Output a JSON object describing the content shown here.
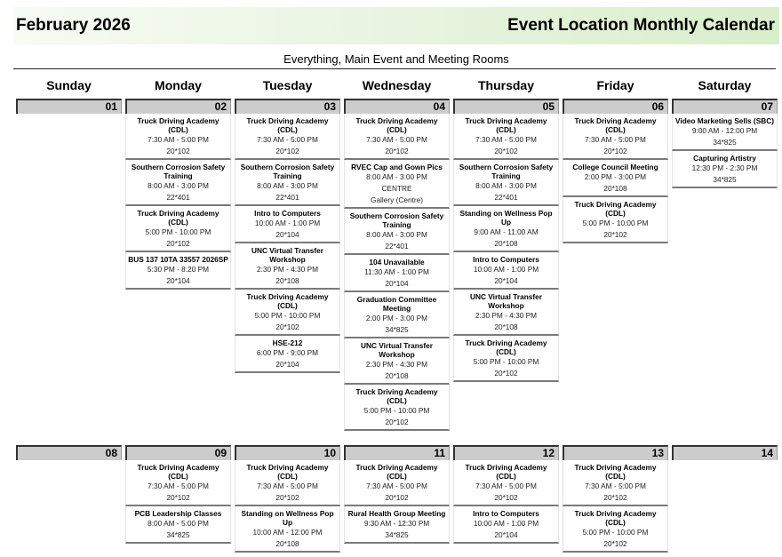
{
  "header": {
    "month": "February 2026",
    "title": "Event Location Monthly Calendar",
    "subtitle": "Everything, Main Event and Meeting Rooms"
  },
  "weekdays": [
    "Sunday",
    "Monday",
    "Tuesday",
    "Wednesday",
    "Thursday",
    "Friday",
    "Saturday"
  ],
  "weeks": [
    [
      {
        "day": "01",
        "events": []
      },
      {
        "day": "02",
        "events": [
          {
            "title": "Truck Driving Academy (CDL)",
            "lines": [
              "7:30 AM - 5:00 PM",
              "20*102"
            ]
          },
          {
            "title": "Southern Corrosion Safety Training",
            "lines": [
              "8:00 AM - 3:00 PM",
              "22*401"
            ]
          },
          {
            "title": "Truck Driving Academy (CDL)",
            "lines": [
              "5:00 PM - 10:00 PM",
              "20*102"
            ]
          },
          {
            "title": "BUS 137 10TA 33557 2026SP",
            "lines": [
              "5:30 PM - 8:20 PM",
              "20*104"
            ]
          }
        ]
      },
      {
        "day": "03",
        "events": [
          {
            "title": "Truck Driving Academy (CDL)",
            "lines": [
              "7:30 AM - 5:00 PM",
              "20*102"
            ]
          },
          {
            "title": "Southern Corrosion Safety Training",
            "lines": [
              "8:00 AM - 3:00 PM",
              "22*401"
            ]
          },
          {
            "title": "Intro to Computers",
            "lines": [
              "10:00 AM - 1:00 PM",
              "20*104"
            ]
          },
          {
            "title": "UNC Virtual Transfer Workshop",
            "lines": [
              "2:30 PM - 4:30 PM",
              "20*108"
            ]
          },
          {
            "title": "Truck Driving Academy (CDL)",
            "lines": [
              "5:00 PM - 10:00 PM",
              "20*102"
            ]
          },
          {
            "title": "HSE-212",
            "lines": [
              "6:00 PM - 9:00 PM",
              "20*104"
            ]
          }
        ]
      },
      {
        "day": "04",
        "events": [
          {
            "title": "Truck Driving Academy (CDL)",
            "lines": [
              "7:30 AM - 5:00 PM",
              "20*102"
            ]
          },
          {
            "title": "RVEC Cap and Gown Pics",
            "lines": [
              "8:00 AM - 3:00 PM",
              "CENTRE",
              "Gallery (Centre)"
            ]
          },
          {
            "title": "Southern Corrosion Safety Training",
            "lines": [
              "8:00 AM - 3:00 PM",
              "22*401"
            ]
          },
          {
            "title": "104 Unavailable",
            "lines": [
              "11:30 AM - 1:00 PM",
              "20*104"
            ]
          },
          {
            "title": "Graduation Committee Meeting",
            "lines": [
              "2:00 PM - 3:00 PM",
              "34*825"
            ]
          },
          {
            "title": "UNC Virtual Transfer Workshop",
            "lines": [
              "2:30 PM - 4:30 PM",
              "20*108"
            ]
          },
          {
            "title": "Truck Driving Academy (CDL)",
            "lines": [
              "5:00 PM - 10:00 PM",
              "20*102"
            ]
          }
        ]
      },
      {
        "day": "05",
        "events": [
          {
            "title": "Truck Driving Academy (CDL)",
            "lines": [
              "7:30 AM - 5:00 PM",
              "20*102"
            ]
          },
          {
            "title": "Southern Corrosion Safety Training",
            "lines": [
              "8:00 AM - 3:00 PM",
              "22*401"
            ]
          },
          {
            "title": "Standing on Wellness Pop Up",
            "lines": [
              "9:00 AM - 11:00 AM",
              "20*108"
            ]
          },
          {
            "title": "Intro to Computers",
            "lines": [
              "10:00 AM - 1:00 PM",
              "20*104"
            ]
          },
          {
            "title": "UNC Virtual Transfer Workshop",
            "lines": [
              "2:30 PM - 4:30 PM",
              "20*108"
            ]
          },
          {
            "title": "Truck Driving Academy (CDL)",
            "lines": [
              "5:00 PM - 10:00 PM",
              "20*102"
            ]
          }
        ]
      },
      {
        "day": "06",
        "events": [
          {
            "title": "Truck Driving Academy (CDL)",
            "lines": [
              "7:30 AM - 5:00 PM",
              "20*102"
            ]
          },
          {
            "title": "College Council Meeting",
            "lines": [
              "2:00 PM - 3:00 PM",
              "20*108"
            ]
          },
          {
            "title": "Truck Driving Academy (CDL)",
            "lines": [
              "5:00 PM - 10:00 PM",
              "20*102"
            ]
          }
        ]
      },
      {
        "day": "07",
        "events": [
          {
            "title": "Video Marketing Sells (SBC)",
            "lines": [
              "9:00 AM - 12:00 PM",
              "34*825"
            ]
          },
          {
            "title": "Capturing Artistry",
            "lines": [
              "12:30 PM - 2:30 PM",
              "34*825"
            ]
          }
        ]
      }
    ],
    [
      {
        "day": "08",
        "events": []
      },
      {
        "day": "09",
        "events": [
          {
            "title": "Truck Driving Academy (CDL)",
            "lines": [
              "7:30 AM - 5:00 PM",
              "20*102"
            ]
          },
          {
            "title": "PCB Leadership Classes",
            "lines": [
              "8:00 AM - 5:00 PM",
              "34*825"
            ]
          }
        ]
      },
      {
        "day": "10",
        "events": [
          {
            "title": "Truck Driving Academy (CDL)",
            "lines": [
              "7:30 AM - 5:00 PM",
              "20*102"
            ]
          },
          {
            "title": "Standing on Wellness Pop Up",
            "lines": [
              "10:00 AM - 12:00 PM",
              "20*108"
            ]
          }
        ]
      },
      {
        "day": "11",
        "events": [
          {
            "title": "Truck Driving Academy (CDL)",
            "lines": [
              "7:30 AM - 5:00 PM",
              "20*102"
            ]
          },
          {
            "title": "Rural Health Group Meeting",
            "lines": [
              "9:30 AM - 12:30 PM",
              "34*825"
            ]
          }
        ]
      },
      {
        "day": "12",
        "events": [
          {
            "title": "Truck Driving Academy (CDL)",
            "lines": [
              "7:30 AM - 5:00 PM",
              "20*102"
            ]
          },
          {
            "title": "Intro to Computers",
            "lines": [
              "10:00 AM - 1:00 PM",
              "20*104"
            ]
          }
        ]
      },
      {
        "day": "13",
        "events": [
          {
            "title": "Truck Driving Academy (CDL)",
            "lines": [
              "7:30 AM - 5:00 PM",
              "20*102"
            ]
          },
          {
            "title": "Truck Driving Academy (CDL)",
            "lines": [
              "5:00 PM - 10:00 PM",
              "20*102"
            ]
          }
        ]
      },
      {
        "day": "14",
        "events": []
      }
    ]
  ]
}
